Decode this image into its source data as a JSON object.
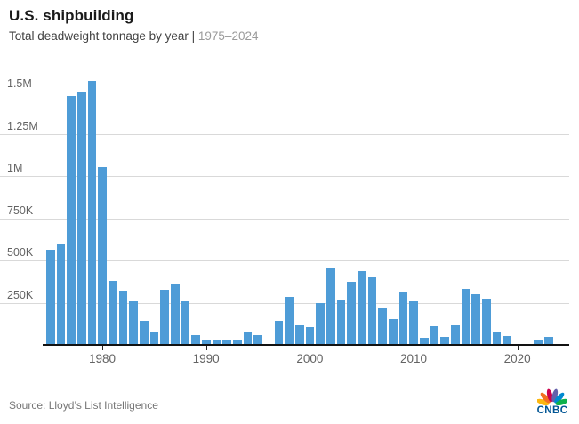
{
  "header": {
    "title": "U.S. shipbuilding",
    "subtitle_prefix": "Total deadweight tonnage by year | ",
    "subtitle_range": "1975–2024"
  },
  "footer": {
    "source": "Source: Lloyd’s List Intelligence",
    "logo_text": "CNBC"
  },
  "colors": {
    "bar": "#4E9CD7",
    "gridline": "#d9d9d9",
    "axis": "#121212",
    "title": "#1a1a1a",
    "subtitle": "#414141",
    "subtitle_range": "#9a9a9a",
    "tick_label": "#636363",
    "source": "#767676",
    "cnbc_wordmark": "#005594",
    "peacock": [
      "#FCB711",
      "#F37021",
      "#CC004C",
      "#6460AA",
      "#0089D0",
      "#0DB14B"
    ]
  },
  "chart_data": {
    "type": "bar",
    "title": "U.S. shipbuilding",
    "subtitle": "Total deadweight tonnage by year | 1975–2024",
    "unit": "deadweight tons",
    "bar_color": "#4E9CD7",
    "grid": true,
    "ylim": [
      0,
      1600000
    ],
    "ytick_labels": [
      "250K",
      "500K",
      "750K",
      "1M",
      "1.25M",
      "1.5M"
    ],
    "ytick_values": [
      250000,
      500000,
      750000,
      1000000,
      1250000,
      1500000
    ],
    "xtick_labels": [
      "1980",
      "1990",
      "2000",
      "2010",
      "2020"
    ],
    "xtick_values": [
      1980,
      1990,
      2000,
      2010,
      2020
    ],
    "x": [
      1975,
      1976,
      1977,
      1978,
      1979,
      1980,
      1981,
      1982,
      1983,
      1984,
      1985,
      1986,
      1987,
      1988,
      1989,
      1990,
      1991,
      1992,
      1993,
      1994,
      1995,
      1996,
      1997,
      1998,
      1999,
      2000,
      2001,
      2002,
      2003,
      2004,
      2005,
      2006,
      2007,
      2008,
      2009,
      2010,
      2011,
      2012,
      2013,
      2014,
      2015,
      2016,
      2017,
      2018,
      2019,
      2020,
      2021,
      2022,
      2023,
      2024
    ],
    "values": [
      560000,
      590000,
      1470000,
      1490000,
      1560000,
      1050000,
      375000,
      315000,
      255000,
      135000,
      70000,
      320000,
      355000,
      252000,
      52000,
      25000,
      24000,
      24000,
      22000,
      74000,
      55000,
      0,
      138000,
      278000,
      112000,
      100000,
      244000,
      455000,
      260000,
      368000,
      432000,
      394000,
      210000,
      150000,
      310000,
      253000,
      39000,
      107000,
      40000,
      109000,
      328000,
      293000,
      268000,
      74000,
      48000,
      0,
      0,
      27000,
      41000,
      0
    ]
  }
}
